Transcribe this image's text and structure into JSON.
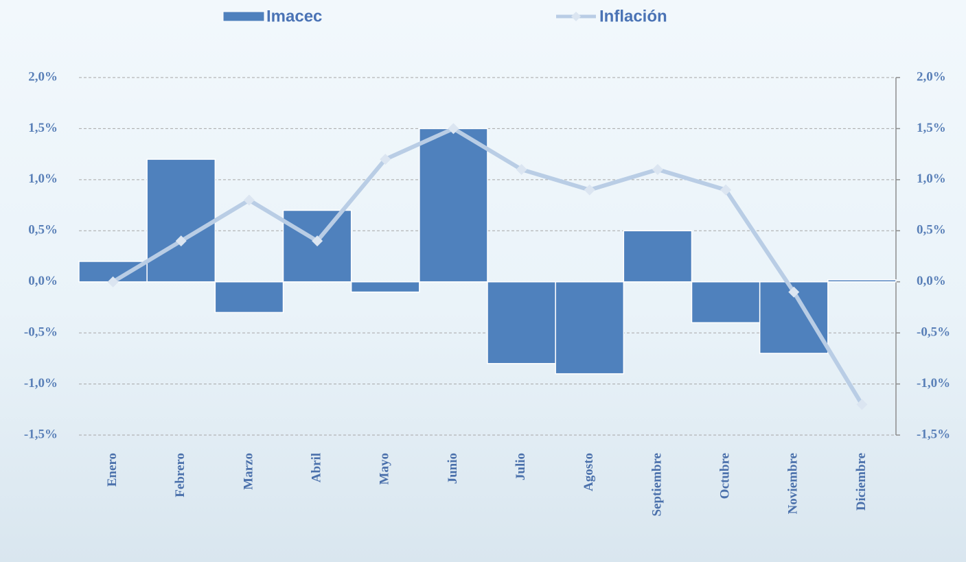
{
  "chart_data": {
    "type": "bar",
    "categories": [
      "Enero",
      "Febrero",
      "Marzo",
      "Abril",
      "Mayo",
      "Junio",
      "Julio",
      "Agosto",
      "Septiembre",
      "Octubre",
      "Noviembre",
      "Diciembre"
    ],
    "series": [
      {
        "name": "Imacec",
        "type": "bar",
        "color": "#4f81bd",
        "values": [
          0.2,
          1.2,
          -0.3,
          0.7,
          -0.1,
          1.5,
          -0.8,
          -0.9,
          0.5,
          -0.4,
          -0.7,
          0.02
        ]
      },
      {
        "name": "Inflación",
        "type": "line",
        "axis": "y2",
        "color": "#b9cde5",
        "values": [
          0.0,
          0.4,
          0.8,
          0.4,
          1.2,
          1.5,
          1.1,
          0.9,
          1.1,
          0.9,
          -0.1,
          -1.2
        ]
      }
    ],
    "ylim": [
      -1.5,
      2.0
    ],
    "yticks": [
      {
        "value": -1.5,
        "label": "-1,5%"
      },
      {
        "value": -1.0,
        "label": "-1,0%"
      },
      {
        "value": -0.5,
        "label": "-0,5%"
      },
      {
        "value": 0,
        "label": "0,0%"
      },
      {
        "value": 0.5,
        "label": "0,5%"
      },
      {
        "value": 1.0,
        "label": "1,0%"
      },
      {
        "value": 1.5,
        "label": "1,5%"
      },
      {
        "value": 2.0,
        "label": "2,0%"
      }
    ],
    "y2lim": [
      -1.5,
      2.0
    ],
    "y2ticks": [
      {
        "value": -1.5,
        "label": "-1,5%"
      },
      {
        "value": -1.0,
        "label": "-1,0%"
      },
      {
        "value": -0.5,
        "label": "-0,5%"
      },
      {
        "value": 0,
        "label": "0,0%"
      },
      {
        "value": 0.5,
        "label": "0,5%"
      },
      {
        "value": 1.0,
        "label": "1,0%"
      },
      {
        "value": 1.5,
        "label": "1,5%"
      },
      {
        "value": 2.0,
        "label": "2,0%"
      }
    ],
    "grid": true
  }
}
